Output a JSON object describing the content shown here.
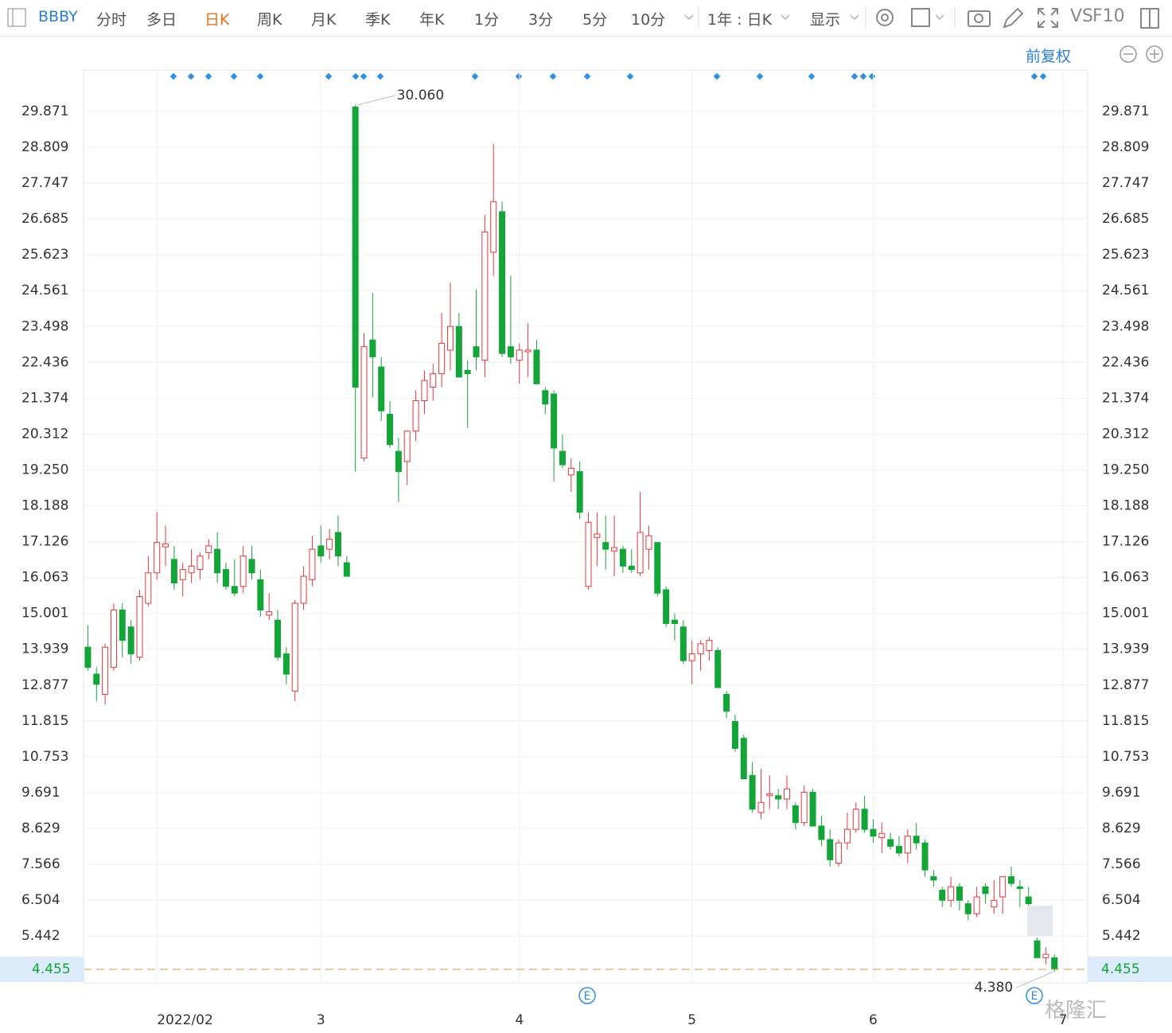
{
  "toolbar": {
    "symbol": "BBBY",
    "periods": [
      "分时",
      "多日",
      "日K",
      "周K",
      "月K",
      "季K",
      "年K",
      "1分",
      "3分",
      "5分",
      "10分"
    ],
    "active_color": "#e8741b",
    "range": "1年 : 日K",
    "display": "显示",
    "vs": "VS",
    "f10": "F10",
    "adjust": "前复权"
  },
  "watermark": "格隆汇",
  "chart_data": {
    "type": "candlestick",
    "open": [
      14.0,
      13.2,
      12.6,
      13.4,
      15.1,
      14.6,
      13.7,
      15.3,
      16.2,
      16.97,
      16.6,
      16.0,
      16.2,
      16.3,
      16.8,
      16.9,
      16.3,
      15.8,
      15.8,
      16.6,
      16.0,
      14.95,
      14.8,
      13.8,
      12.7,
      15.3,
      16.0,
      17.0,
      16.9,
      17.4,
      16.5,
      30.0,
      19.6,
      23.1,
      22.3,
      20.9,
      19.8,
      19.5,
      20.4,
      21.3,
      21.7,
      22.1,
      22.8,
      23.5,
      22.2,
      22.9,
      22.5,
      25.7,
      26.9,
      22.9,
      22.5,
      22.75,
      22.8,
      21.6,
      21.5,
      19.8,
      19.1,
      19.2,
      15.8,
      17.25,
      17.1,
      16.85,
      16.9,
      16.4,
      16.2,
      16.9,
      17.1,
      15.7,
      14.8,
      14.6,
      13.6,
      13.8,
      13.9,
      13.9,
      12.6,
      11.8,
      11.3,
      10.2,
      9.1,
      9.6,
      9.6,
      9.5,
      9.3,
      8.8,
      9.7,
      8.7,
      8.3,
      7.6,
      8.2,
      8.6,
      9.2,
      8.6,
      8.36,
      8.3,
      8.1,
      7.9,
      8.4,
      8.2,
      7.2,
      6.8,
      6.5,
      6.9,
      6.4,
      6.1,
      6.9,
      6.3,
      6.6,
      7.2,
      6.9,
      6.6,
      5.3,
      4.8,
      4.8
    ],
    "high": [
      14.65,
      13.4,
      14.1,
      15.3,
      15.3,
      14.8,
      15.7,
      16.7,
      18.0,
      17.6,
      17.0,
      16.5,
      16.9,
      16.8,
      17.2,
      17.4,
      16.5,
      16.6,
      17.0,
      17.0,
      16.3,
      15.6,
      15.1,
      14.0,
      15.4,
      16.4,
      17.3,
      17.6,
      17.5,
      17.9,
      16.7,
      30.06,
      23.3,
      24.5,
      22.6,
      21.3,
      20.2,
      20.4,
      21.6,
      22.2,
      22.4,
      23.9,
      24.8,
      23.9,
      22.5,
      24.6,
      26.8,
      28.9,
      27.2,
      25.0,
      23.0,
      23.6,
      23.1,
      21.7,
      21.6,
      20.3,
      19.6,
      19.5,
      18.0,
      18.0,
      17.9,
      17.9,
      17.0,
      16.9,
      18.6,
      17.6,
      17.1,
      15.8,
      15.0,
      14.8,
      14.2,
      14.2,
      14.3,
      14.0,
      12.7,
      12.0,
      11.4,
      10.6,
      10.4,
      10.2,
      9.8,
      10.2,
      9.4,
      9.9,
      9.8,
      9.0,
      8.6,
      8.3,
      9.1,
      9.4,
      9.6,
      8.9,
      8.8,
      8.5,
      8.4,
      8.6,
      8.8,
      8.3,
      7.4,
      6.9,
      7.2,
      7.0,
      6.5,
      6.9,
      7.0,
      7.1,
      7.2,
      7.5,
      7.1,
      6.9,
      5.4,
      5.1,
      4.9
    ],
    "low": [
      13.3,
      12.4,
      12.3,
      13.3,
      13.7,
      13.5,
      13.6,
      15.2,
      16.0,
      16.4,
      15.7,
      15.5,
      15.9,
      16.0,
      16.6,
      15.9,
      15.7,
      15.5,
      15.6,
      16.0,
      14.9,
      14.8,
      13.6,
      12.9,
      12.4,
      15.1,
      15.8,
      16.5,
      16.6,
      16.4,
      16.1,
      19.2,
      19.5,
      21.4,
      20.7,
      19.9,
      18.3,
      18.8,
      20.1,
      20.9,
      21.3,
      21.7,
      22.2,
      22.0,
      20.5,
      22.2,
      22.0,
      25.0,
      22.6,
      22.4,
      21.8,
      22.0,
      21.8,
      20.9,
      18.9,
      19.3,
      18.6,
      17.8,
      15.7,
      16.4,
      16.3,
      16.1,
      16.2,
      16.2,
      16.1,
      16.3,
      15.5,
      14.6,
      14.2,
      13.5,
      12.9,
      13.3,
      13.6,
      12.8,
      11.9,
      10.9,
      10.1,
      9.1,
      8.9,
      9.2,
      9.2,
      9.2,
      8.6,
      8.7,
      8.7,
      8.1,
      7.5,
      7.5,
      8.0,
      8.5,
      8.5,
      8.2,
      7.9,
      8.0,
      7.8,
      7.6,
      8.0,
      7.2,
      6.9,
      6.3,
      6.3,
      6.2,
      5.9,
      6.0,
      6.4,
      6.1,
      6.1,
      6.9,
      6.3,
      6.2,
      4.8,
      4.6,
      4.38
    ],
    "close": [
      13.4,
      12.9,
      14.0,
      15.1,
      14.2,
      13.8,
      15.5,
      16.2,
      17.1,
      17.06,
      15.9,
      16.3,
      16.4,
      16.7,
      17.0,
      16.2,
      15.8,
      15.6,
      16.7,
      16.2,
      15.1,
      15.05,
      13.7,
      13.2,
      15.3,
      16.1,
      16.9,
      16.7,
      17.2,
      16.7,
      16.1,
      21.7,
      22.9,
      22.6,
      21.0,
      20.0,
      19.2,
      20.4,
      21.3,
      21.9,
      22.1,
      23.0,
      23.5,
      22.0,
      22.1,
      22.6,
      26.3,
      27.2,
      22.7,
      22.6,
      22.8,
      22.8,
      21.8,
      21.2,
      19.9,
      19.4,
      19.3,
      18.0,
      17.7,
      17.35,
      16.9,
      16.95,
      16.4,
      16.3,
      17.4,
      17.3,
      15.6,
      14.7,
      14.7,
      13.6,
      13.8,
      14.1,
      14.2,
      12.8,
      12.1,
      11.0,
      10.1,
      9.2,
      9.4,
      9.65,
      9.5,
      9.8,
      8.8,
      9.7,
      8.7,
      8.3,
      7.7,
      8.2,
      8.6,
      9.2,
      8.6,
      8.4,
      8.48,
      8.1,
      7.9,
      8.4,
      8.2,
      7.4,
      7.1,
      6.5,
      6.9,
      6.5,
      6.1,
      6.6,
      6.7,
      6.5,
      7.2,
      7.0,
      6.85,
      6.4,
      4.8,
      4.9,
      4.455
    ],
    "up_color": "#e5383b",
    "down_color": "#13a538",
    "ylim": [
      4.054,
      31.097
    ],
    "yticks": [
      29.871,
      28.809,
      27.747,
      26.685,
      25.623,
      24.561,
      23.498,
      22.436,
      21.374,
      20.312,
      {
        "value": 19.25,
        "label": "19.250"
      },
      18.188,
      17.126,
      16.063,
      15.001,
      13.939,
      12.877,
      11.815,
      10.753,
      9.691,
      8.629,
      7.566,
      6.504,
      5.442
    ],
    "xlim": [
      -0.5,
      115.85
    ],
    "xticks": [
      {
        "value": 8,
        "label": "2022/02"
      },
      {
        "value": 27,
        "label": "3"
      },
      {
        "value": 50,
        "label": "4"
      },
      {
        "value": 70,
        "label": "5"
      },
      {
        "value": 91,
        "label": "6"
      },
      {
        "value": 113,
        "label": "7"
      }
    ],
    "grid": true,
    "last_price": 4.455,
    "last_price_color": "#d99a4e",
    "max_label": {
      "value": 30.06,
      "label": "30.060"
    },
    "min_label": {
      "value": 4.38,
      "label": "4.380"
    },
    "event_marker": "E"
  }
}
